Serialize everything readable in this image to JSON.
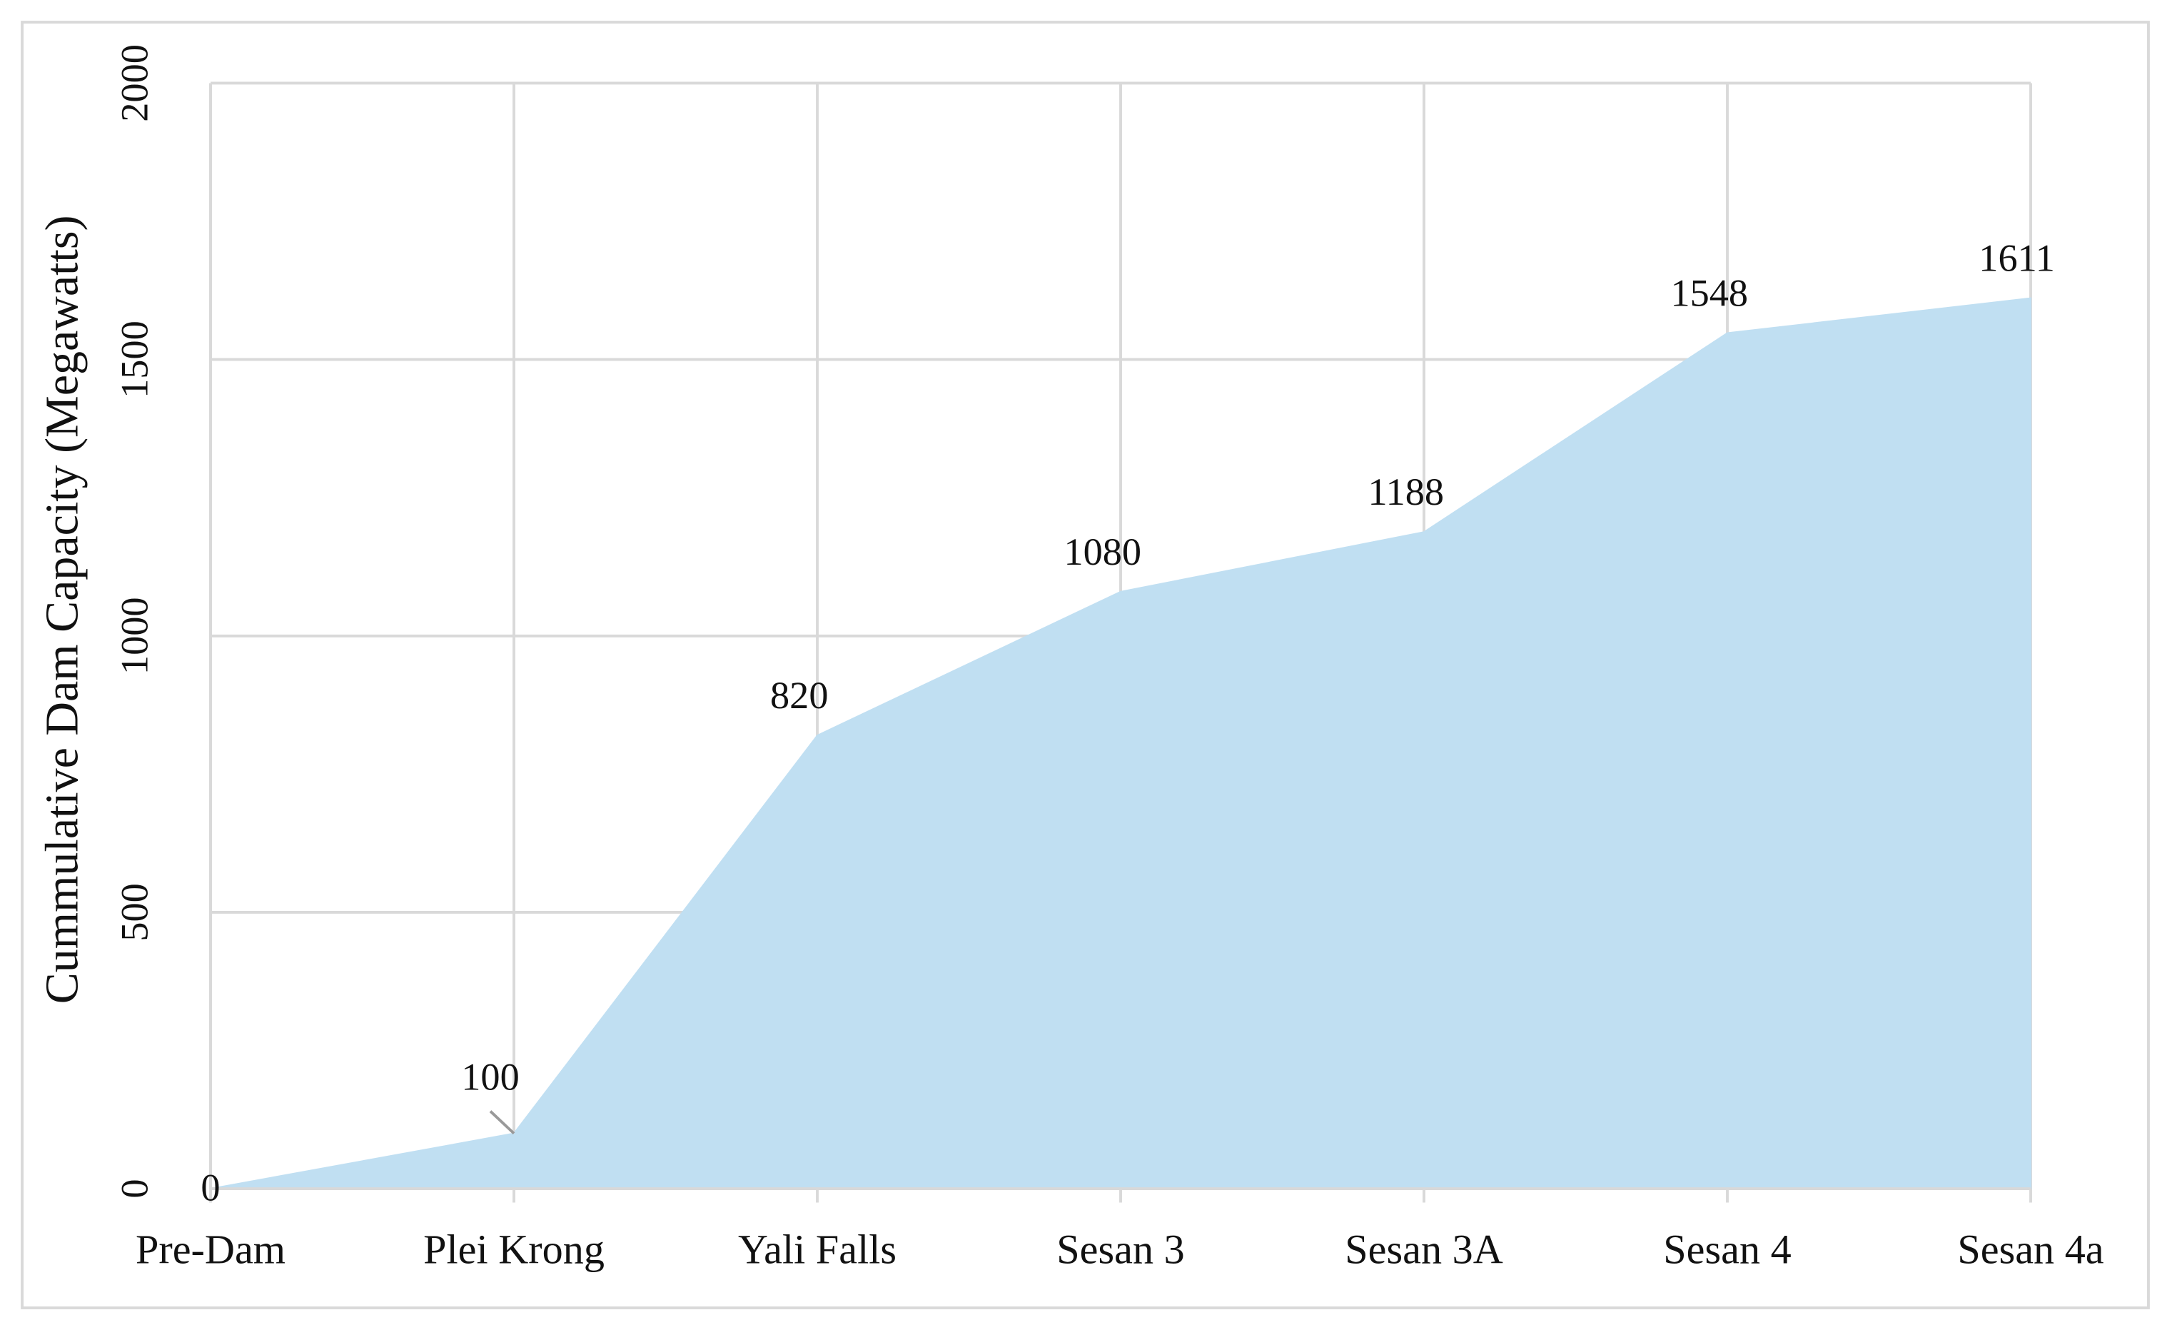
{
  "chart_data": {
    "type": "area",
    "y_label": "Cummulative Dam Capacity  (Megawatts)",
    "categories": [
      "Pre-Dam",
      "Plei Krong",
      "Yali Falls",
      "Sesan 3",
      "Sesan 3A",
      "Sesan 4",
      "Sesan 4a"
    ],
    "values": [
      0,
      100,
      820,
      1080,
      1188,
      1548,
      1611
    ],
    "color": "#c0dff2",
    "ylim": [
      0,
      2000
    ],
    "yticks": [
      0,
      500,
      1000,
      1500,
      2000
    ],
    "grid": true
  }
}
